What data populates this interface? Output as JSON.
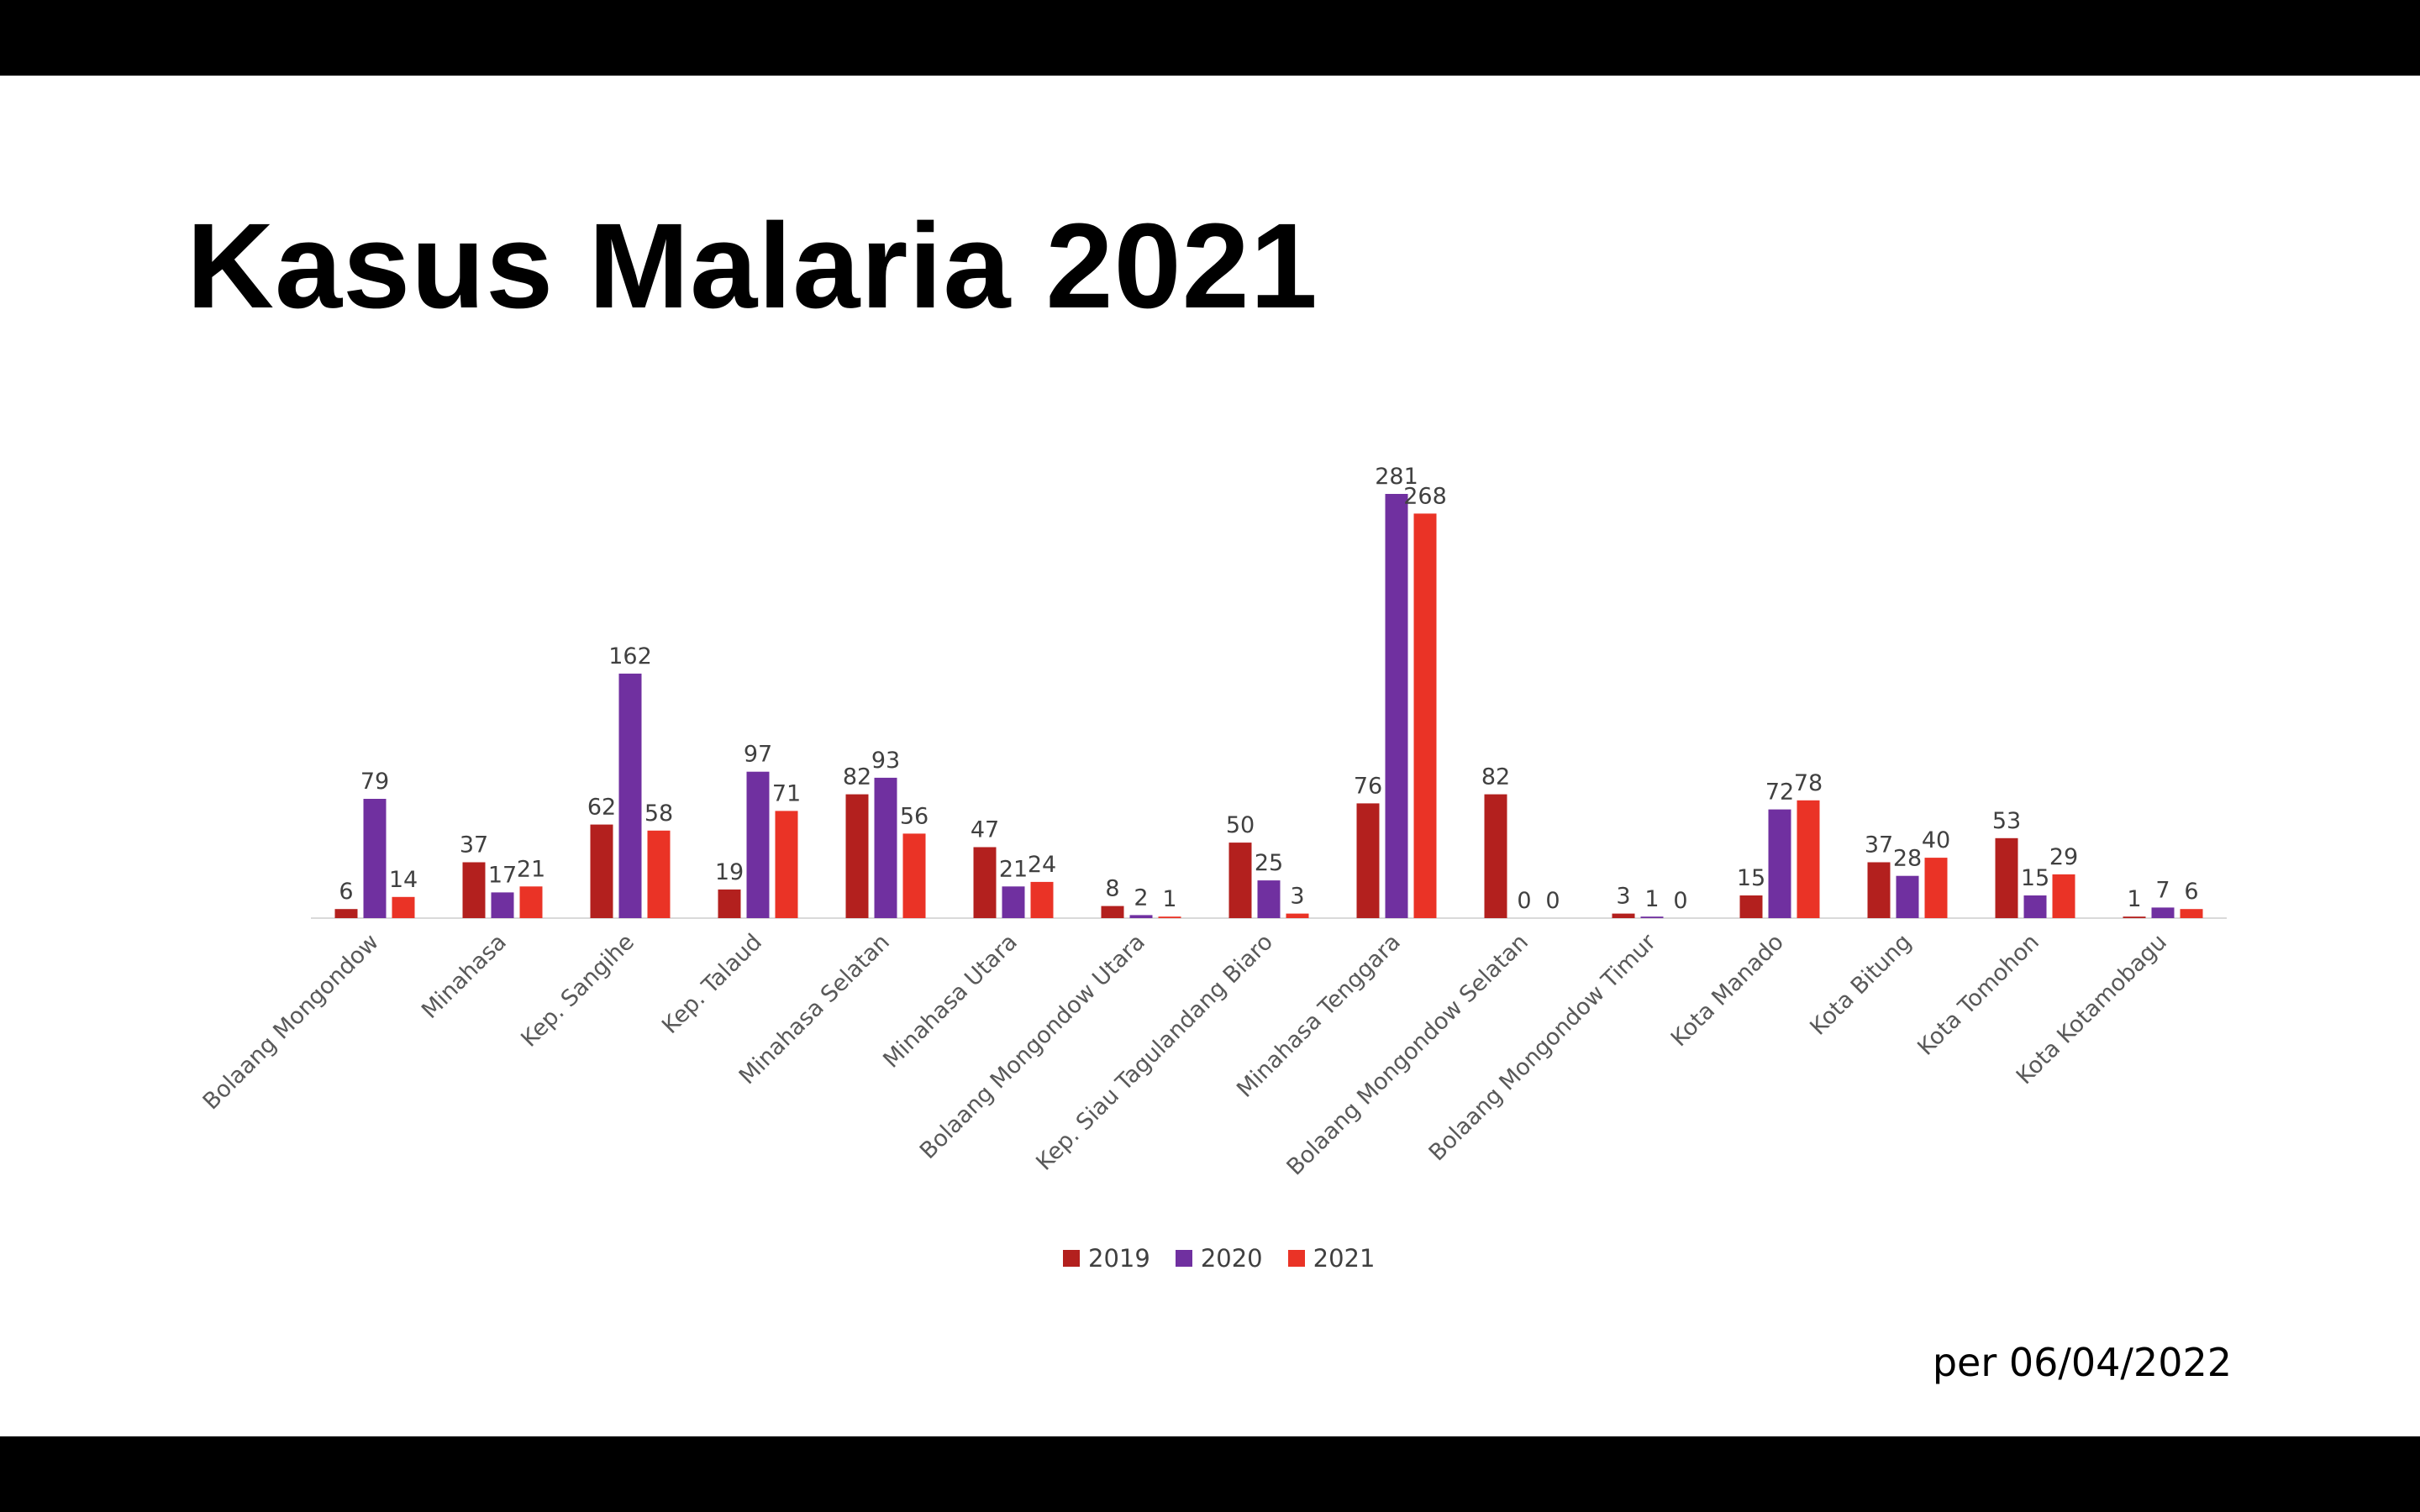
{
  "slide": {
    "title": "Kasus Malaria 2021",
    "footnote": "per 06/04/2022"
  },
  "colors": {
    "background": "#ffffff",
    "frame": "#000000",
    "series_2019": "#b3201e",
    "series_2020": "#7030a0",
    "series_2021": "#ea3326",
    "text": "#404040"
  },
  "legend": {
    "position": "bottom",
    "items": [
      "2019",
      "2020",
      "2021"
    ]
  },
  "chart_data": {
    "type": "bar",
    "title": "",
    "xlabel": "",
    "ylabel": "",
    "ylim": [
      0,
      281
    ],
    "grid": false,
    "categories": [
      "Bolaang Mongondow",
      "Minahasa",
      "Kep. Sangihe",
      "Kep. Talaud",
      "Minahasa Selatan",
      "Minahasa Utara",
      "Bolaang Mongondow Utara",
      "Kep. Siau Tagulandang Biaro",
      "Minahasa Tenggara",
      "Bolaang Mongondow Selatan",
      "Bolaang Mongondow Timur",
      "Kota Manado",
      "Kota Bitung",
      "Kota Tomohon",
      "Kota Kotamobagu"
    ],
    "series": [
      {
        "name": "2019",
        "color": "#b3201e",
        "values": [
          6,
          37,
          62,
          19,
          82,
          47,
          8,
          50,
          76,
          82,
          3,
          15,
          37,
          53,
          1
        ]
      },
      {
        "name": "2020",
        "color": "#7030a0",
        "values": [
          79,
          17,
          162,
          97,
          93,
          21,
          2,
          25,
          281,
          0,
          1,
          72,
          28,
          15,
          7
        ]
      },
      {
        "name": "2021",
        "color": "#ea3326",
        "values": [
          14,
          21,
          58,
          71,
          56,
          24,
          1,
          3,
          268,
          0,
          0,
          78,
          40,
          29,
          6
        ]
      }
    ]
  }
}
